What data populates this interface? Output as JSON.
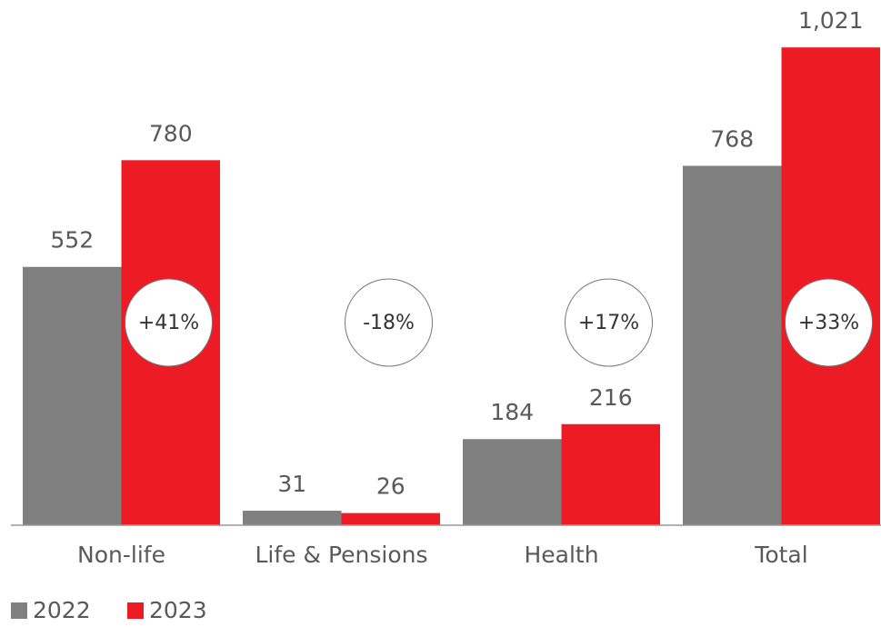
{
  "chart_data": {
    "type": "bar",
    "categories": [
      "Non-life",
      "Life & Pensions",
      "Health",
      "Total"
    ],
    "series": [
      {
        "name": "2022",
        "color": "#808080",
        "values": [
          552,
          31,
          184,
          768
        ],
        "value_labels": [
          "552",
          "31",
          "184",
          "768"
        ]
      },
      {
        "name": "2023",
        "color": "#ed1c24",
        "values": [
          780,
          26,
          216,
          1021
        ],
        "value_labels": [
          "780",
          "26",
          "216",
          "1,021"
        ]
      }
    ],
    "changes": [
      "+41%",
      "-18%",
      "+17%",
      "+33%"
    ],
    "legend": "bottom-left"
  }
}
